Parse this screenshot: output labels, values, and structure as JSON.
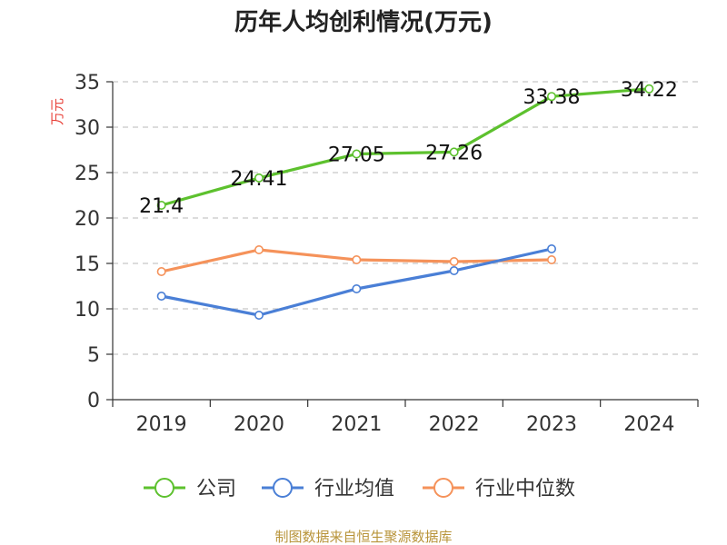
{
  "chart_data": {
    "type": "line",
    "title": "历年人均创利情况(万元)",
    "xlabel": "",
    "ylabel": "万元",
    "ylim": [
      0,
      35
    ],
    "yticks": [
      0,
      5,
      10,
      15,
      20,
      25,
      30,
      35
    ],
    "categories": [
      "2019",
      "2020",
      "2021",
      "2022",
      "2023",
      "2024"
    ],
    "grid": true,
    "legend_position": "bottom",
    "series": [
      {
        "name": "公司",
        "color": "#5dc12e",
        "values": [
          21.4,
          24.41,
          27.05,
          27.26,
          33.38,
          34.22
        ],
        "labels": [
          "21.4",
          "24.41",
          "27.05",
          "27.26",
          "33.38",
          "34.22"
        ]
      },
      {
        "name": "行业均值",
        "color": "#4a7fd6",
        "values": [
          11.4,
          9.3,
          12.2,
          14.2,
          16.6,
          null
        ]
      },
      {
        "name": "行业中位数",
        "color": "#f5925a",
        "values": [
          14.1,
          16.5,
          15.4,
          15.2,
          15.4,
          null
        ]
      }
    ]
  },
  "colors": {
    "axis_title": "#e8423a",
    "footer": "#b8943a",
    "axis": "#333333",
    "grid": "#c8c8c8"
  },
  "footer": {
    "source": "制图数据来自恒生聚源数据库"
  }
}
